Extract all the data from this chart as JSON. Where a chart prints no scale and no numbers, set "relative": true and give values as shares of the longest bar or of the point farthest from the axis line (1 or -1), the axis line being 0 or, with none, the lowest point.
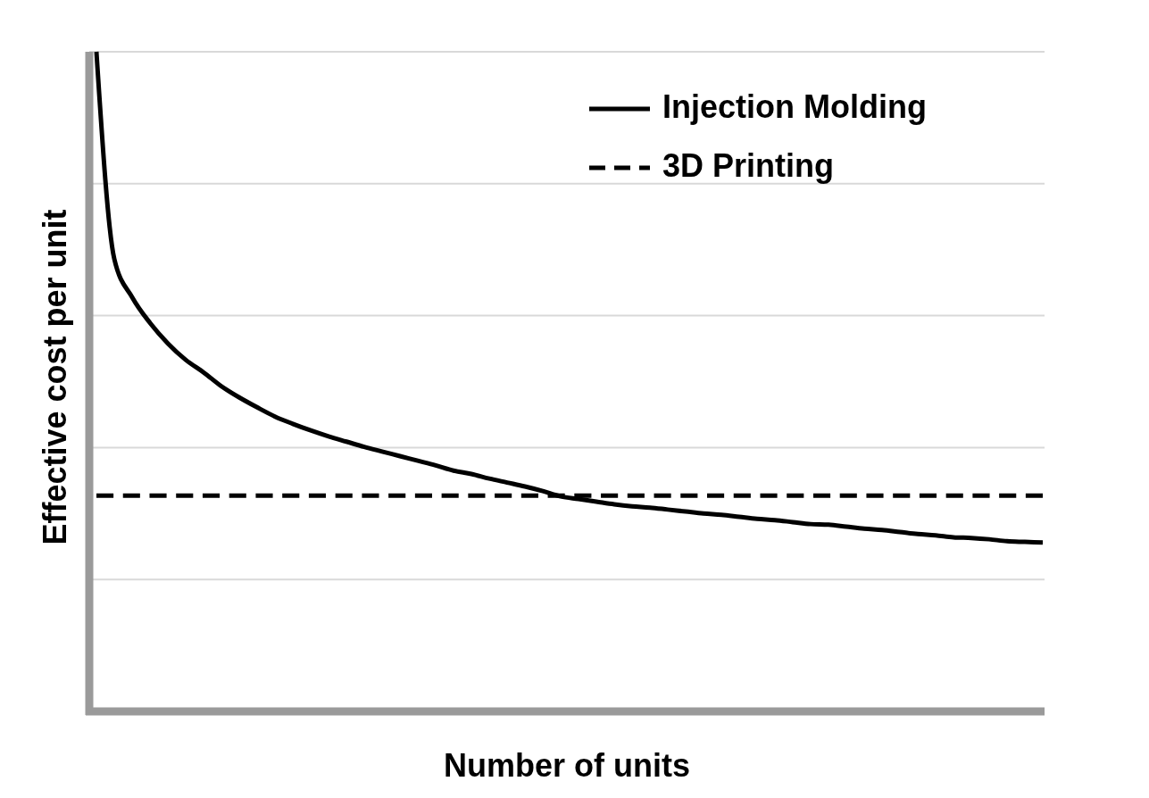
{
  "chart_data": {
    "type": "line",
    "relative": true,
    "xlabel": "Number of units",
    "ylabel": "Effective cost per unit",
    "grid": "y",
    "legend": "top right",
    "tick_labels": false,
    "categories": [
      null,
      null,
      null,
      null,
      null,
      null,
      null,
      null,
      null,
      null,
      null,
      null,
      null,
      null,
      null,
      null,
      null,
      null,
      null,
      null,
      null,
      null,
      null,
      null,
      null,
      null,
      null,
      null,
      null,
      null,
      null,
      null,
      null,
      null,
      null,
      null,
      null,
      null,
      null,
      null,
      null,
      null,
      null,
      null,
      null,
      null,
      null,
      null,
      null,
      null,
      null,
      null,
      null,
      null
    ],
    "series": [
      {
        "name": "Injection Molding",
        "color": "#000000",
        "line_style": "solid",
        "values": [
          1.0,
          0.686,
          0.628,
          0.589,
          0.558,
          0.533,
          0.514,
          0.493,
          0.476,
          0.461,
          0.447,
          0.436,
          0.426,
          0.417,
          0.409,
          0.401,
          0.394,
          0.387,
          0.38,
          0.373,
          0.365,
          0.36,
          0.353,
          0.347,
          0.341,
          0.334,
          0.326,
          0.322,
          0.318,
          0.314,
          0.311,
          0.309,
          0.306,
          0.303,
          0.3,
          0.298,
          0.295,
          0.292,
          0.29,
          0.287,
          0.284,
          0.283,
          0.28,
          0.277,
          0.275,
          0.272,
          0.269,
          0.267,
          0.264,
          0.263,
          0.261,
          0.258,
          0.257,
          0.256
        ]
      },
      {
        "name": "3D Printing",
        "color": "#000000",
        "line_style": "dashed",
        "values": [
          0.327,
          0.327,
          0.327,
          0.327,
          0.327,
          0.327,
          0.327,
          0.327,
          0.327,
          0.327,
          0.327,
          0.327,
          0.327,
          0.327,
          0.327,
          0.327,
          0.327,
          0.327,
          0.327,
          0.327,
          0.327,
          0.327,
          0.327,
          0.327,
          0.327,
          0.327,
          0.327,
          0.327,
          0.327,
          0.327,
          0.327,
          0.327,
          0.327,
          0.327,
          0.327,
          0.327,
          0.327,
          0.327,
          0.327,
          0.327,
          0.327,
          0.327,
          0.327,
          0.327,
          0.327,
          0.327,
          0.327,
          0.327,
          0.327,
          0.327,
          0.327,
          0.327,
          0.327,
          0.327
        ]
      }
    ]
  }
}
